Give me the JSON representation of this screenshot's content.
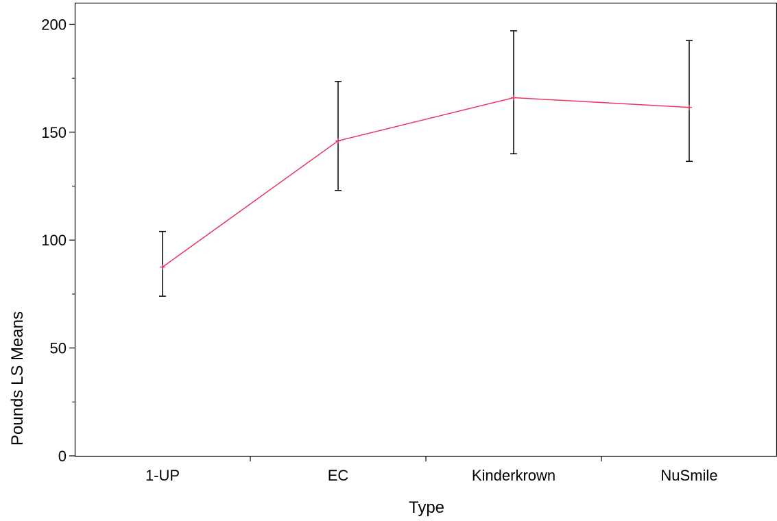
{
  "chart_data": {
    "type": "line",
    "xlabel": "Type",
    "ylabel": "Pounds LS Means",
    "categories": [
      "1-UP",
      "EC",
      "Kinderkrown",
      "NuSmile"
    ],
    "ylim": [
      0,
      210
    ],
    "yticks_major": [
      0,
      50,
      100,
      150,
      200
    ],
    "yticks_minor": [
      25,
      75,
      125,
      175
    ],
    "series": [
      {
        "values": [
          87.5,
          146,
          166,
          161.5
        ],
        "lower": [
          74,
          123,
          140,
          136.5
        ],
        "upper": [
          104,
          173.5,
          197,
          192.5
        ],
        "color": "#e8365d",
        "marker": "plus"
      }
    ],
    "errorbar_color": "#000000",
    "grid": false
  }
}
